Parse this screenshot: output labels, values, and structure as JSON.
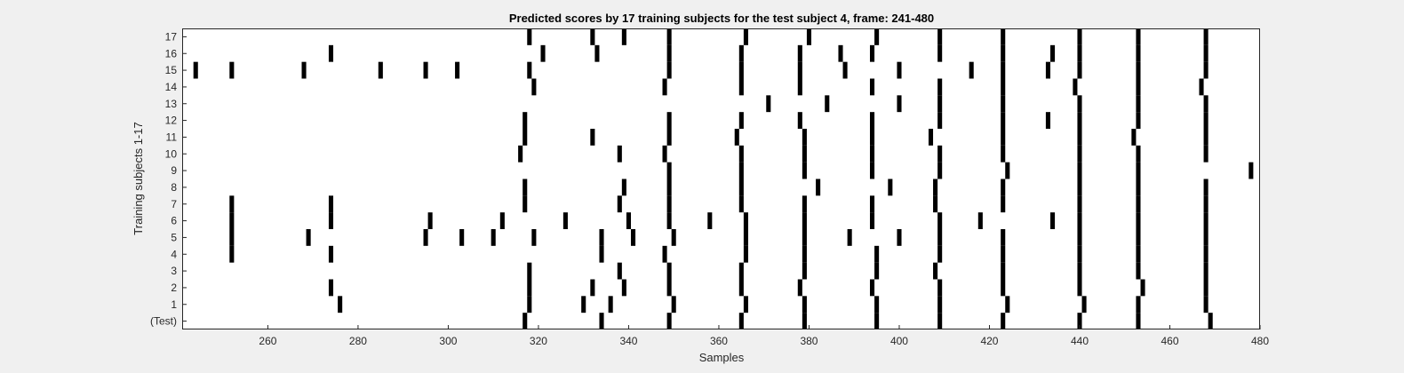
{
  "chart_data": {
    "type": "raster",
    "title": "Predicted scores by 17 training subjects for the test subject 4, frame: 241-480",
    "xlabel": "Samples",
    "ylabel": "Training subjects 1-17",
    "xlim": [
      241,
      480
    ],
    "xticks": [
      260,
      280,
      300,
      320,
      340,
      360,
      380,
      400,
      420,
      440,
      460,
      480
    ],
    "xtick_labels": [
      "260",
      "280",
      "300",
      "320",
      "340",
      "360",
      "380",
      "400",
      "420",
      "440",
      "460",
      "480"
    ],
    "rows": [
      "(Test)",
      "1",
      "2",
      "3",
      "4",
      "5",
      "6",
      "7",
      "8",
      "9",
      "10",
      "11",
      "12",
      "13",
      "14",
      "15",
      "16",
      "17"
    ],
    "grid": false,
    "legend": "none",
    "colors": {
      "mark": "#000000",
      "plot_bg": "#ffffff",
      "figure_bg": "#f0f0f0",
      "axis": "#262626"
    },
    "events": [
      [
        317,
        334,
        349,
        365,
        379,
        395,
        409,
        423,
        440,
        453,
        469
      ],
      [
        276,
        318,
        330,
        336,
        350,
        366,
        379,
        395,
        409,
        424,
        441,
        453,
        468
      ],
      [
        274,
        318,
        332,
        339,
        349,
        365,
        378,
        394,
        409,
        423,
        440,
        454,
        468
      ],
      [
        318,
        338,
        349,
        365,
        379,
        395,
        408,
        423,
        440,
        453,
        468
      ],
      [
        252,
        274,
        334,
        348,
        366,
        379,
        395,
        409,
        423,
        440,
        453,
        468
      ],
      [
        252,
        269,
        295,
        303,
        310,
        319,
        334,
        341,
        350,
        366,
        379,
        389,
        400,
        409,
        423,
        440,
        453,
        468
      ],
      [
        252,
        274,
        296,
        312,
        326,
        340,
        349,
        358,
        366,
        379,
        394,
        409,
        418,
        434,
        440,
        453,
        468
      ],
      [
        252,
        274,
        317,
        338,
        349,
        365,
        379,
        394,
        408,
        423,
        440,
        453,
        468
      ],
      [
        317,
        339,
        349,
        365,
        382,
        398,
        408,
        423,
        440,
        453,
        468
      ],
      [
        349,
        365,
        379,
        394,
        409,
        424,
        440,
        453,
        478
      ],
      [
        316,
        338,
        348,
        365,
        379,
        394,
        409,
        423,
        440,
        453,
        468
      ],
      [
        317,
        332,
        349,
        364,
        379,
        394,
        407,
        423,
        440,
        452,
        468
      ],
      [
        317,
        349,
        365,
        378,
        394,
        409,
        423,
        433,
        440,
        453,
        468
      ],
      [
        371,
        384,
        400,
        409,
        423,
        440,
        453,
        468
      ],
      [
        319,
        348,
        365,
        378,
        394,
        409,
        423,
        439,
        453,
        467
      ],
      [
        244,
        252,
        268,
        285,
        295,
        302,
        318,
        349,
        365,
        378,
        388,
        400,
        416,
        423,
        433,
        440,
        453,
        468
      ],
      [
        274,
        321,
        333,
        349,
        365,
        378,
        387,
        394,
        409,
        423,
        434,
        440,
        453,
        468
      ],
      [
        318,
        332,
        339,
        349,
        366,
        380,
        395,
        409,
        423,
        440,
        453,
        468
      ]
    ]
  }
}
